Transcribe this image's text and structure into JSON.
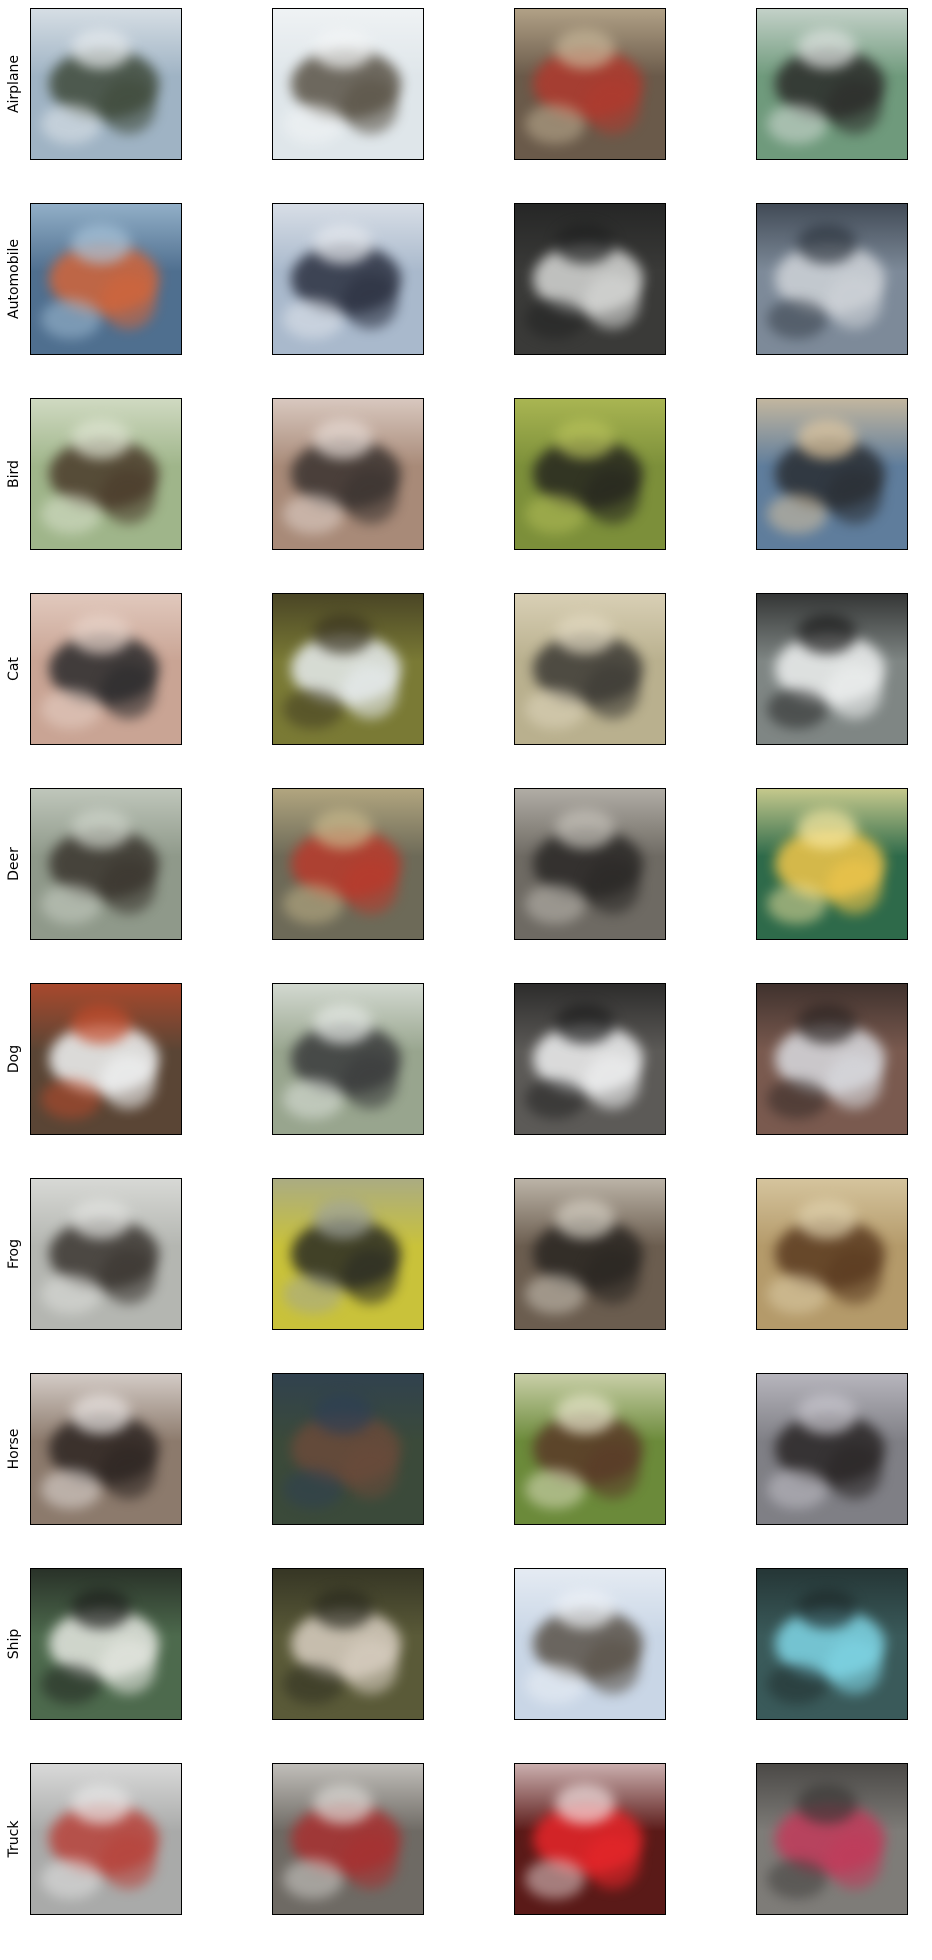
{
  "figure": {
    "row_labels": [
      "Airplane",
      "Automobile",
      "Bird",
      "Cat",
      "Deer",
      "Dog",
      "Frog",
      "Horse",
      "Ship",
      "Truck"
    ],
    "samples_per_row": 4,
    "samples": [
      [
        {
          "bg": "#9fb3c4",
          "fg": "#3f4a3a",
          "accent": "#e8ecef"
        },
        {
          "bg": "#dfe6ea",
          "fg": "#5a5346",
          "accent": "#f4f6f7"
        },
        {
          "bg": "#6a5a4a",
          "fg": "#b03a2e",
          "accent": "#c8b89a"
        },
        {
          "bg": "#6f9a7c",
          "fg": "#2c2c2a",
          "accent": "#dfe3e1"
        }
      ],
      [
        {
          "bg": "#4f6f8f",
          "fg": "#d2653a",
          "accent": "#a8c4da"
        },
        {
          "bg": "#a9b9cc",
          "fg": "#2b3040",
          "accent": "#e7eaef"
        },
        {
          "bg": "#3a3a38",
          "fg": "#d7d8d6",
          "accent": "#1f2020"
        },
        {
          "bg": "#7d8a99",
          "fg": "#cfd3d8",
          "accent": "#2e3640"
        }
      ],
      [
        {
          "bg": "#9fb58a",
          "fg": "#4a3a2a",
          "accent": "#e0e6d4"
        },
        {
          "bg": "#a88a78",
          "fg": "#3a3330",
          "accent": "#e8dcd6"
        },
        {
          "bg": "#7c8f3a",
          "fg": "#26261f",
          "accent": "#b8c25a"
        },
        {
          "bg": "#5f7d9c",
          "fg": "#2a2e33",
          "accent": "#e3c9a0"
        }
      ],
      [
        {
          "bg": "#c9a494",
          "fg": "#2a2a2c",
          "accent": "#e9d5cb"
        },
        {
          "bg": "#7a7a35",
          "fg": "#e7ecef",
          "accent": "#3a3420"
        },
        {
          "bg": "#b9b08e",
          "fg": "#3c3a35",
          "accent": "#e3dac2"
        },
        {
          "bg": "#7f8684",
          "fg": "#eef0f0",
          "accent": "#1c1c1c"
        }
      ],
      [
        {
          "bg": "#8f998a",
          "fg": "#3a352e",
          "accent": "#cfd5cb"
        },
        {
          "bg": "#6d6a58",
          "fg": "#b93a2c",
          "accent": "#c8b98c"
        },
        {
          "bg": "#6e6a63",
          "fg": "#2a2826",
          "accent": "#c7c3bb"
        },
        {
          "bg": "#2e6a4a",
          "fg": "#f1c64a",
          "accent": "#f7e8a2"
        }
      ],
      [
        {
          "bg": "#5a4535",
          "fg": "#f2f4f5",
          "accent": "#c24a2a"
        },
        {
          "bg": "#98a58e",
          "fg": "#3a3b3c",
          "accent": "#e6eae6"
        },
        {
          "bg": "#5c5a57",
          "fg": "#f0f1f2",
          "accent": "#1d1d1d"
        },
        {
          "bg": "#7a5a4f",
          "fg": "#d9dbe0",
          "accent": "#2c2422"
        }
      ],
      [
        {
          "bg": "#b4b6b1",
          "fg": "#3a3530",
          "accent": "#e3e4e1"
        },
        {
          "bg": "#c9c23a",
          "fg": "#2a2b24",
          "accent": "#a0a49a"
        },
        {
          "bg": "#6b5d4f",
          "fg": "#2a2622",
          "accent": "#d6d0c4"
        },
        {
          "bg": "#b49a6a",
          "fg": "#5a3a20",
          "accent": "#e0d2ae"
        }
      ],
      [
        {
          "bg": "#8c7a6c",
          "fg": "#2d2522",
          "accent": "#ebe6e4"
        },
        {
          "bg": "#3b4a3a",
          "fg": "#6a4a3a",
          "accent": "#2d3f55"
        },
        {
          "bg": "#6b8a3a",
          "fg": "#5a3a28",
          "accent": "#e8e6cc"
        },
        {
          "bg": "#7f7f85",
          "fg": "#2a2626",
          "accent": "#c9c7cf"
        }
      ],
      [
        {
          "bg": "#4d6a4d",
          "fg": "#e6e8e2",
          "accent": "#1d1f1c"
        },
        {
          "bg": "#5a5a38",
          "fg": "#d9cfc2",
          "accent": "#2a2a1e"
        },
        {
          "bg": "#c9d6e6",
          "fg": "#5a5248",
          "accent": "#eef2f7"
        },
        {
          "bg": "#3a5a5a",
          "fg": "#7fd6e6",
          "accent": "#1e2a2a"
        }
      ],
      [
        {
          "bg": "#a9aaa9",
          "fg": "#b8423a",
          "accent": "#e9e9e9"
        },
        {
          "bg": "#6e6a64",
          "fg": "#a83030",
          "accent": "#dcdad6"
        },
        {
          "bg": "#5a1a18",
          "fg": "#e8262a",
          "accent": "#f0e0e0"
        },
        {
          "bg": "#7e7c78",
          "fg": "#c23a5a",
          "accent": "#3a3836"
        }
      ]
    ]
  }
}
